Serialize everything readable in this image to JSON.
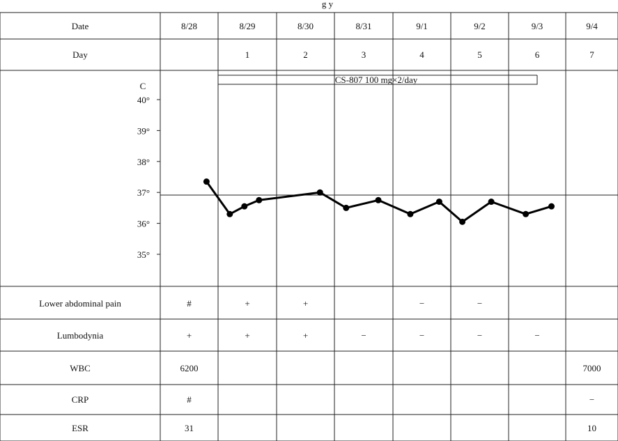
{
  "header_text": "g              y",
  "row_labels": {
    "date": "Date",
    "day": "Day",
    "pain": "Lower abdominal pain",
    "lumbo": "Lumbodynia",
    "wbc": "WBC",
    "crp": "CRP",
    "esr": "ESR"
  },
  "dates": [
    "8/28",
    "8/29",
    "8/30",
    "8/31",
    "9/1",
    "9/2",
    "9/3",
    "9/4"
  ],
  "days": [
    "",
    "1",
    "2",
    "3",
    "4",
    "5",
    "6",
    "7"
  ],
  "treatment": "CS-807   100 mg×2/day",
  "axis": {
    "unit": "C",
    "ticks": [
      "40°",
      "39°",
      "38°",
      "37°",
      "36°",
      "35°"
    ]
  },
  "pain_values": [
    "#",
    "+",
    "+",
    "",
    "−",
    "−",
    "",
    ""
  ],
  "lumbo_values": [
    "+",
    "+",
    "+",
    "−",
    "−",
    "−",
    "−",
    ""
  ],
  "wbc_values": [
    "6200",
    "",
    "",
    "",
    "",
    "",
    "",
    "7000"
  ],
  "crp_values": [
    "#",
    "",
    "",
    "",
    "",
    "",
    "",
    "−"
  ],
  "esr_values": [
    "31",
    "",
    "",
    "",
    "",
    "",
    "",
    "10"
  ],
  "chart_data": {
    "type": "line",
    "title": "",
    "ylabel": "C",
    "ylim": [
      35,
      40
    ],
    "yticks": [
      40,
      39,
      38,
      37,
      36,
      35
    ],
    "categories": [
      "8/28",
      "8/29",
      "8/30",
      "8/31",
      "9/1",
      "9/2",
      "9/3",
      "9/4"
    ],
    "series": [
      {
        "name": "",
        "x": [
          0.8,
          1.2,
          1.45,
          1.7,
          2.75,
          3.2,
          3.75,
          4.3,
          4.8,
          5.2,
          5.7,
          6.3,
          6.75
        ],
        "values": [
          37.35,
          36.3,
          36.55,
          36.75,
          37.0,
          36.5,
          36.75,
          36.3,
          36.7,
          36.05,
          36.7,
          36.3,
          36.55
        ]
      }
    ]
  }
}
